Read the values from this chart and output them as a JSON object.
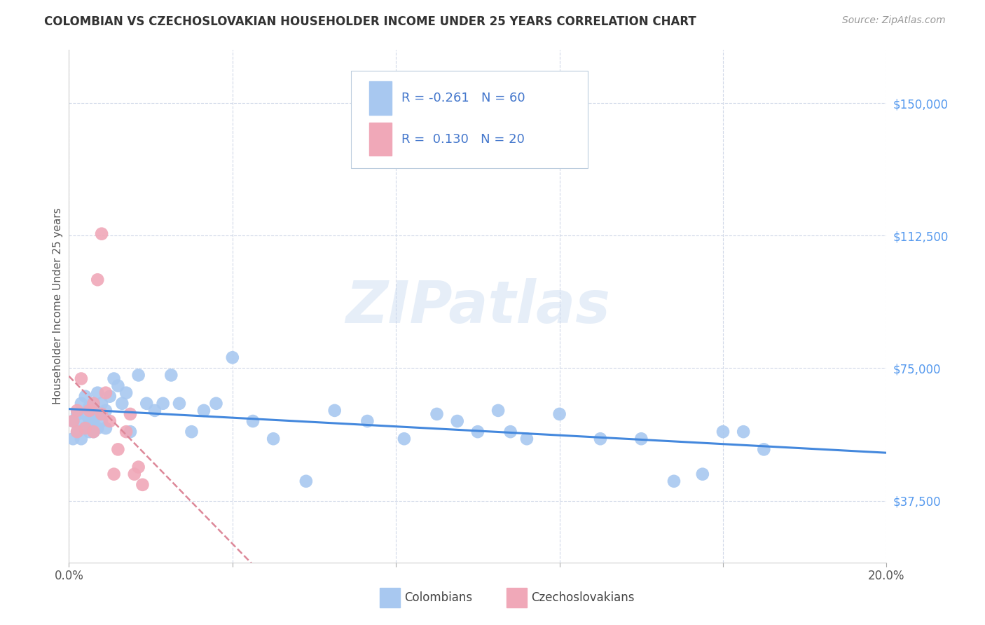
{
  "title": "COLOMBIAN VS CZECHOSLOVAKIAN HOUSEHOLDER INCOME UNDER 25 YEARS CORRELATION CHART",
  "source": "Source: ZipAtlas.com",
  "ylabel": "Householder Income Under 25 years",
  "xlim": [
    0.0,
    0.2
  ],
  "ylim": [
    20000,
    165000
  ],
  "yticks": [
    37500,
    75000,
    112500,
    150000
  ],
  "ytick_labels": [
    "$37,500",
    "$75,000",
    "$112,500",
    "$150,000"
  ],
  "xticks": [
    0.0,
    0.04,
    0.08,
    0.12,
    0.16,
    0.2
  ],
  "xtick_labels": [
    "0.0%",
    "",
    "",
    "",
    "",
    "20.0%"
  ],
  "background_color": "#ffffff",
  "grid_color": "#d0d8e8",
  "colombian_color": "#a8c8f0",
  "czechoslovakian_color": "#f0a8b8",
  "colombian_line_color": "#4488dd",
  "czechoslovakian_line_color": "#dd8899",
  "watermark": "ZIPatlas",
  "colombian_x": [
    0.001,
    0.001,
    0.002,
    0.002,
    0.003,
    0.003,
    0.003,
    0.004,
    0.004,
    0.004,
    0.005,
    0.005,
    0.005,
    0.006,
    0.006,
    0.006,
    0.006,
    0.007,
    0.007,
    0.007,
    0.008,
    0.008,
    0.009,
    0.009,
    0.01,
    0.011,
    0.012,
    0.013,
    0.014,
    0.015,
    0.017,
    0.019,
    0.021,
    0.023,
    0.025,
    0.027,
    0.03,
    0.033,
    0.036,
    0.04,
    0.045,
    0.05,
    0.058,
    0.065,
    0.073,
    0.082,
    0.09,
    0.095,
    0.1,
    0.105,
    0.108,
    0.112,
    0.12,
    0.13,
    0.14,
    0.148,
    0.155,
    0.16,
    0.165,
    0.17
  ],
  "colombian_y": [
    60000,
    55000,
    62000,
    57000,
    60000,
    55000,
    65000,
    62000,
    58000,
    67000,
    64000,
    60000,
    57000,
    63000,
    60000,
    57000,
    65000,
    62000,
    68000,
    58000,
    65000,
    60000,
    63000,
    58000,
    67000,
    72000,
    70000,
    65000,
    68000,
    57000,
    73000,
    65000,
    63000,
    65000,
    73000,
    65000,
    57000,
    63000,
    65000,
    78000,
    60000,
    55000,
    43000,
    63000,
    60000,
    55000,
    62000,
    60000,
    57000,
    63000,
    57000,
    55000,
    62000,
    55000,
    55000,
    43000,
    45000,
    57000,
    57000,
    52000
  ],
  "czechoslovakian_x": [
    0.001,
    0.002,
    0.002,
    0.003,
    0.004,
    0.005,
    0.006,
    0.006,
    0.007,
    0.008,
    0.008,
    0.009,
    0.01,
    0.011,
    0.012,
    0.014,
    0.015,
    0.016,
    0.017,
    0.018
  ],
  "czechoslovakian_y": [
    60000,
    57000,
    63000,
    72000,
    58000,
    63000,
    57000,
    65000,
    100000,
    113000,
    62000,
    68000,
    60000,
    45000,
    52000,
    57000,
    62000,
    45000,
    47000,
    42000
  ]
}
